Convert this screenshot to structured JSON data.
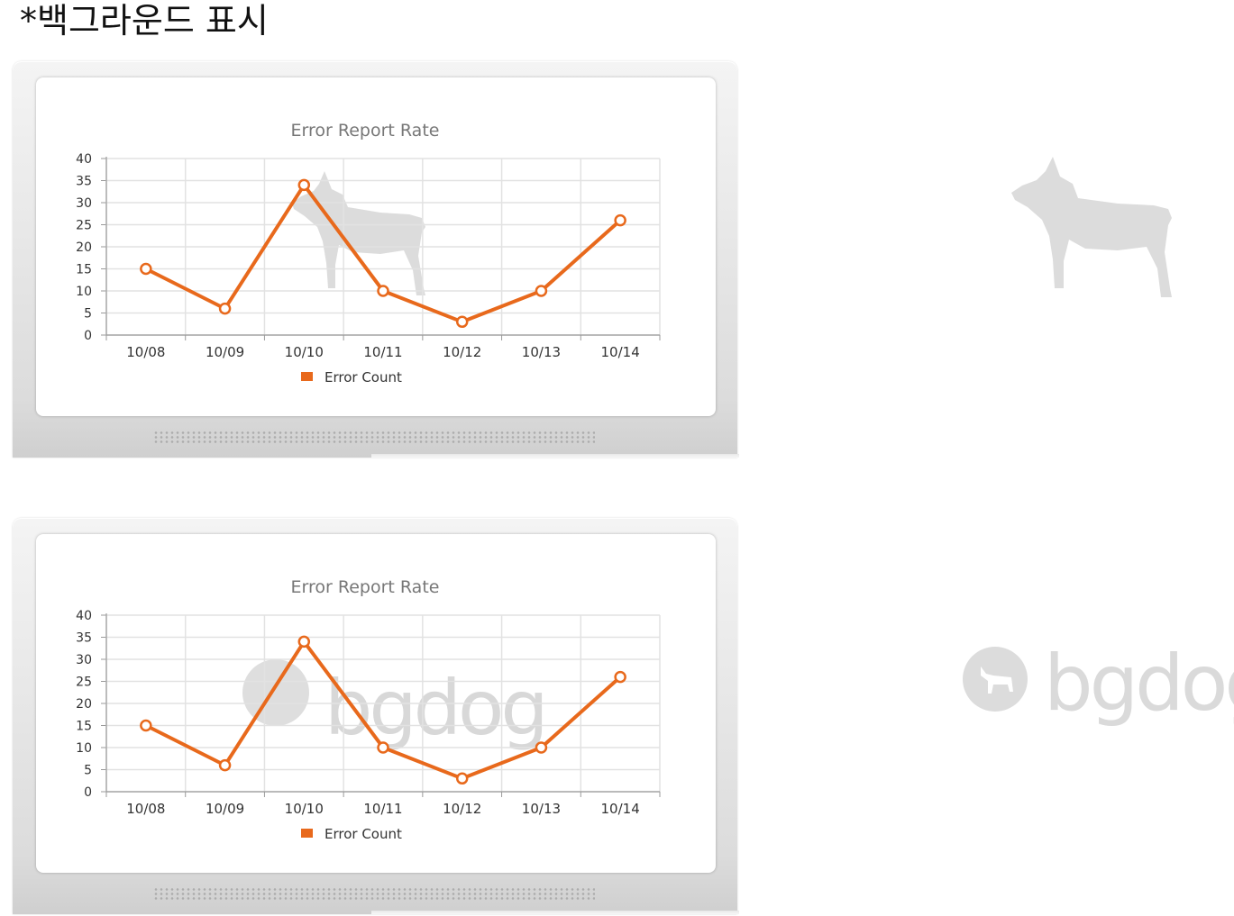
{
  "heading": "*백그라운드 표시",
  "panels": [
    {
      "watermark_icon": "dog-silhouette-icon"
    },
    {
      "watermark_icon": "bgdog-logo-icon",
      "watermark_text": "bgdog"
    }
  ],
  "side_marks": [
    {
      "icon": "dog-silhouette-icon"
    },
    {
      "icon": "bgdog-logo-icon",
      "text": "bgdog"
    }
  ],
  "colors": {
    "series": "#e8691c",
    "grid": "#e2e2e2",
    "axis": "#9a9a9a",
    "text": "#333333",
    "watermark": "#d8d8d8"
  },
  "chart_data": [
    {
      "type": "line",
      "title": "Error Report Rate",
      "categories": [
        "10/08",
        "10/09",
        "10/10",
        "10/11",
        "10/12",
        "10/13",
        "10/14"
      ],
      "series": [
        {
          "name": "Error Count",
          "values": [
            15,
            6,
            34,
            10,
            3,
            10,
            26
          ]
        }
      ],
      "ylim": [
        0,
        40
      ],
      "yticks": [
        0,
        5,
        10,
        15,
        20,
        25,
        30,
        35,
        40
      ],
      "grid": true,
      "legend": "bottom-center"
    },
    {
      "type": "line",
      "title": "Error Report Rate",
      "categories": [
        "10/08",
        "10/09",
        "10/10",
        "10/11",
        "10/12",
        "10/13",
        "10/14"
      ],
      "series": [
        {
          "name": "Error Count",
          "values": [
            15,
            6,
            34,
            10,
            3,
            10,
            26
          ]
        }
      ],
      "ylim": [
        0,
        40
      ],
      "yticks": [
        0,
        5,
        10,
        15,
        20,
        25,
        30,
        35,
        40
      ],
      "grid": true,
      "legend": "bottom-center"
    }
  ]
}
